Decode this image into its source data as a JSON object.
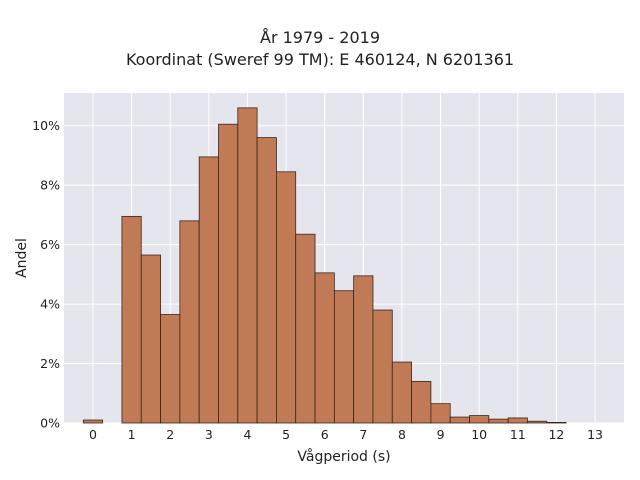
{
  "chart_data": {
    "type": "bar",
    "title": "År 1979 - 2019",
    "subtitle": "Koordinat (Sweref 99 TM): E 460124, N 6201361",
    "xlabel": "Vågperiod (s)",
    "ylabel": "Andel",
    "bin_width": 0.5,
    "bin_starts": [
      0,
      0.5,
      1,
      1.5,
      2,
      2.5,
      3,
      3.5,
      4,
      4.5,
      5,
      5.5,
      6,
      6.5,
      7,
      7.5,
      8,
      8.5,
      9,
      9.5,
      10,
      10.5,
      11,
      11.5,
      12,
      12.5
    ],
    "values": [
      0.1,
      0,
      6.95,
      5.65,
      3.65,
      6.8,
      8.95,
      10.05,
      10.6,
      9.6,
      8.45,
      6.35,
      5.05,
      4.45,
      4.95,
      3.8,
      2.05,
      1.4,
      0.65,
      0.2,
      0.25,
      0.13,
      0.17,
      0.06,
      0.02,
      0
    ],
    "xticks": [
      "0",
      "1",
      "2",
      "3",
      "4",
      "5",
      "6",
      "7",
      "8",
      "9",
      "10",
      "11",
      "12",
      "13"
    ],
    "yticks": [
      "0%",
      "2%",
      "4%",
      "6%",
      "8%",
      "10%"
    ],
    "xlim": [
      -0.75,
      13.75
    ],
    "ylim": [
      0,
      11.1
    ],
    "grid": true,
    "colors": {
      "bar": "#c07b56",
      "bar_edge": "#3b2418",
      "plot_bg": "#e5e5ee",
      "grid": "#ffffff"
    }
  }
}
